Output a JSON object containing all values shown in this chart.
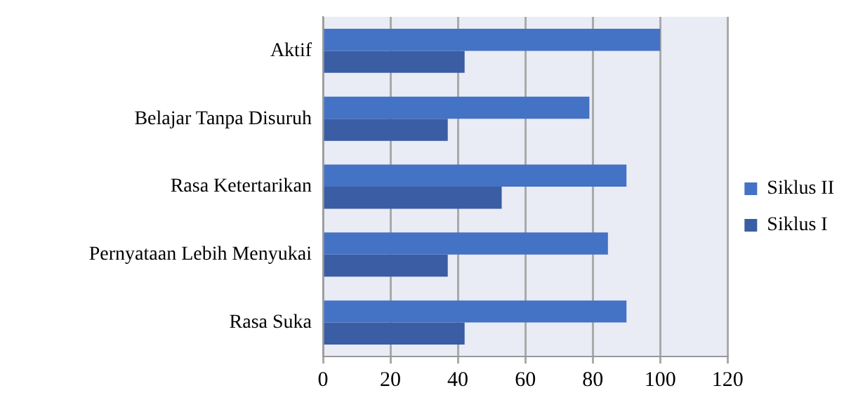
{
  "chart_data": {
    "type": "bar",
    "orientation": "horizontal",
    "categories": [
      "Aktif",
      "Belajar Tanpa Disuruh",
      "Rasa Ketertarikan",
      "Pernyataan Lebih Menyukai",
      "Rasa Suka"
    ],
    "series": [
      {
        "name": "Siklus II",
        "color": "#4472c4",
        "values": [
          100,
          79,
          90,
          84.5,
          90
        ]
      },
      {
        "name": "Siklus I",
        "color": "#3a5da4",
        "values": [
          42,
          37,
          53,
          37,
          42
        ]
      }
    ],
    "xlim": [
      0,
      120
    ],
    "xticks": [
      0,
      20,
      40,
      60,
      80,
      100,
      120
    ],
    "grid": "x",
    "legend": "right"
  }
}
